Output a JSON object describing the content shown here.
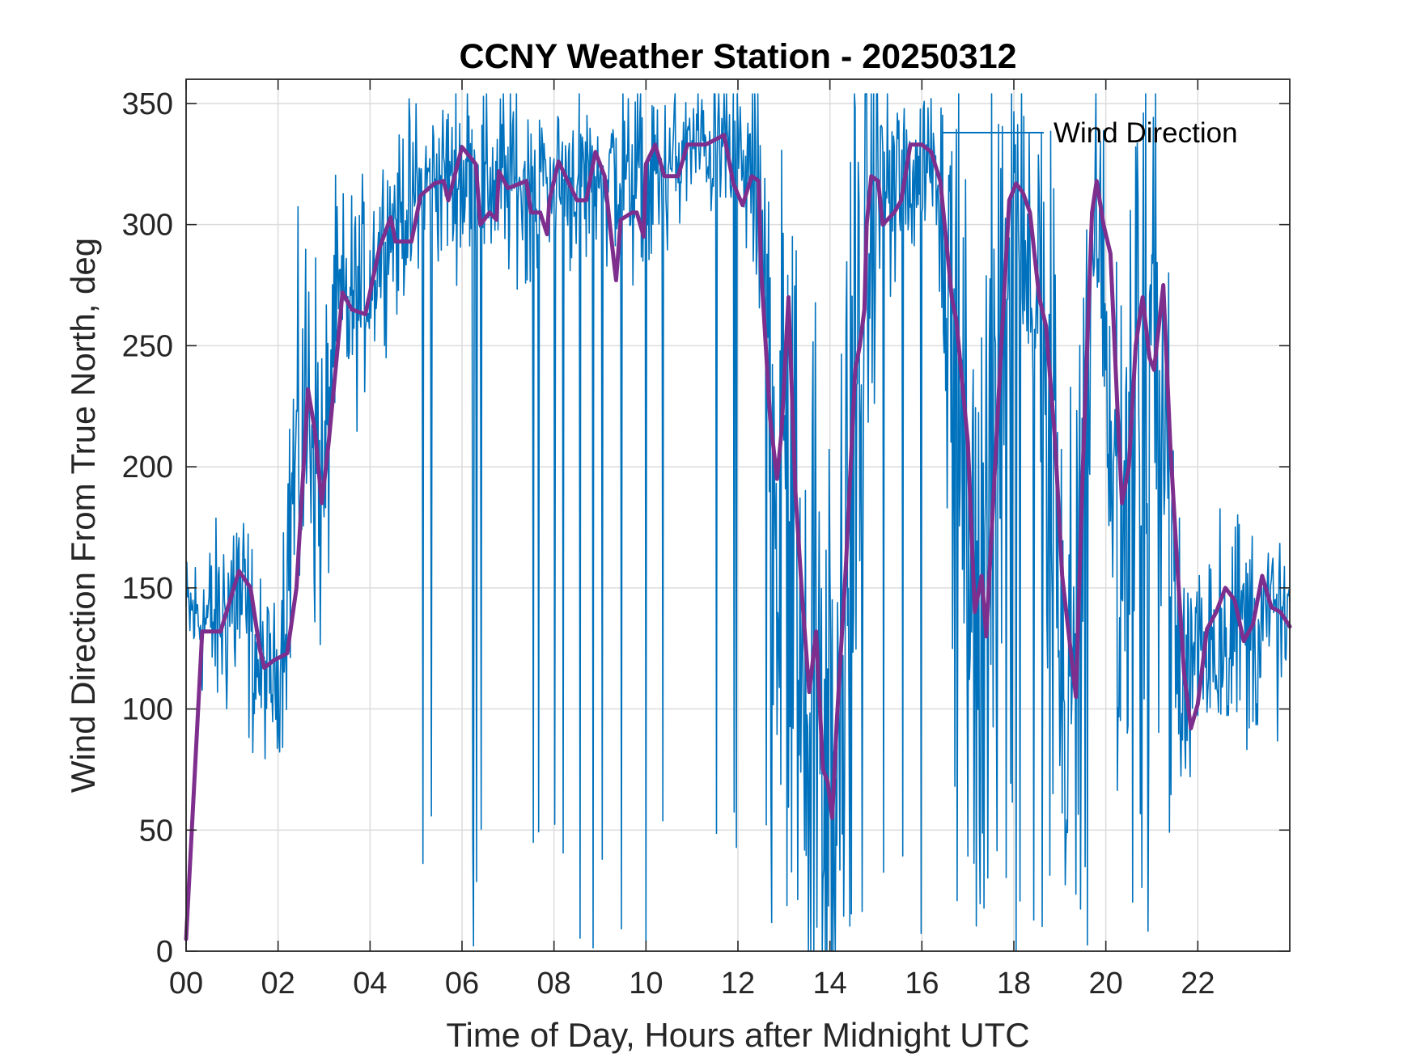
{
  "chart_data": {
    "type": "line",
    "title": "CCNY Weather Station - 20250312",
    "xlabel": "Time of Day, Hours after Midnight UTC",
    "ylabel": "Wind Direction From True North, deg",
    "xlim": [
      0,
      24
    ],
    "ylim": [
      0,
      360
    ],
    "grid": true,
    "legend_position": "top-right",
    "x_ticks": [
      0,
      2,
      4,
      6,
      8,
      10,
      12,
      14,
      16,
      18,
      20,
      22
    ],
    "x_tick_labels": [
      "00",
      "02",
      "04",
      "06",
      "08",
      "10",
      "12",
      "14",
      "16",
      "18",
      "20",
      "22"
    ],
    "y_ticks": [
      0,
      50,
      100,
      150,
      200,
      250,
      300,
      350
    ],
    "y_tick_labels": [
      "0",
      "50",
      "100",
      "150",
      "200",
      "250",
      "300",
      "350"
    ],
    "series": [
      {
        "name": "Wind Direction",
        "role": "raw",
        "color": "#0072BD",
        "anchors": [
          [
            0.0,
            140,
            12
          ],
          [
            0.7,
            135,
            20
          ],
          [
            1.1,
            150,
            28
          ],
          [
            1.6,
            115,
            18
          ],
          [
            2.0,
            112,
            14
          ],
          [
            2.3,
            185,
            40
          ],
          [
            2.7,
            230,
            40
          ],
          [
            3.0,
            180,
            40
          ],
          [
            3.2,
            260,
            25
          ],
          [
            3.8,
            270,
            22
          ],
          [
            4.3,
            295,
            18
          ],
          [
            5.0,
            312,
            18
          ],
          [
            5.8,
            322,
            18
          ],
          [
            7.0,
            318,
            20
          ],
          [
            8.0,
            318,
            18
          ],
          [
            9.0,
            322,
            18
          ],
          [
            10.0,
            315,
            20
          ],
          [
            11.0,
            332,
            12
          ],
          [
            11.8,
            332,
            15
          ],
          [
            12.4,
            315,
            25
          ],
          [
            12.9,
            200,
            80
          ],
          [
            13.4,
            150,
            90
          ],
          [
            14.0,
            80,
            80
          ],
          [
            14.5,
            220,
            70
          ],
          [
            15.0,
            310,
            30
          ],
          [
            15.6,
            318,
            18
          ],
          [
            16.3,
            330,
            15
          ],
          [
            16.7,
            250,
            70
          ],
          [
            17.2,
            150,
            70
          ],
          [
            17.6,
            240,
            60
          ],
          [
            18.0,
            310,
            30
          ],
          [
            18.6,
            270,
            50
          ],
          [
            19.2,
            110,
            70
          ],
          [
            19.8,
            310,
            30
          ],
          [
            20.3,
            190,
            70
          ],
          [
            20.8,
            260,
            60
          ],
          [
            21.2,
            250,
            60
          ],
          [
            21.6,
            100,
            40
          ],
          [
            22.0,
            130,
            25
          ],
          [
            23.0,
            135,
            25
          ],
          [
            24.0,
            135,
            20
          ]
        ],
        "noise_seed": 12345
      },
      {
        "name": "",
        "role": "smoothed",
        "color": "#7E2F8E",
        "points": [
          [
            0.0,
            5
          ],
          [
            0.35,
            132
          ],
          [
            0.75,
            132
          ],
          [
            1.15,
            157
          ],
          [
            1.4,
            150
          ],
          [
            1.6,
            125
          ],
          [
            1.7,
            117
          ],
          [
            1.9,
            120
          ],
          [
            2.2,
            123
          ],
          [
            2.4,
            150
          ],
          [
            2.6,
            215
          ],
          [
            2.65,
            232
          ],
          [
            2.8,
            215
          ],
          [
            2.95,
            185
          ],
          [
            3.1,
            210
          ],
          [
            3.3,
            250
          ],
          [
            3.4,
            272
          ],
          [
            3.6,
            265
          ],
          [
            3.9,
            263
          ],
          [
            4.2,
            290
          ],
          [
            4.45,
            303
          ],
          [
            4.55,
            293
          ],
          [
            4.9,
            293
          ],
          [
            5.1,
            312
          ],
          [
            5.4,
            317
          ],
          [
            5.6,
            318
          ],
          [
            5.7,
            310
          ],
          [
            6.0,
            332
          ],
          [
            6.3,
            325
          ],
          [
            6.4,
            300
          ],
          [
            6.6,
            305
          ],
          [
            6.75,
            302
          ],
          [
            6.8,
            322
          ],
          [
            7.0,
            315
          ],
          [
            7.4,
            318
          ],
          [
            7.5,
            305
          ],
          [
            7.7,
            305
          ],
          [
            7.85,
            296
          ],
          [
            7.9,
            310
          ],
          [
            8.1,
            326
          ],
          [
            8.5,
            310
          ],
          [
            8.7,
            310
          ],
          [
            8.9,
            330
          ],
          [
            9.1,
            320
          ],
          [
            9.3,
            285
          ],
          [
            9.35,
            277
          ],
          [
            9.45,
            302
          ],
          [
            9.7,
            305
          ],
          [
            9.8,
            305
          ],
          [
            9.95,
            295
          ],
          [
            10.0,
            325
          ],
          [
            10.2,
            333
          ],
          [
            10.4,
            320
          ],
          [
            10.7,
            320
          ],
          [
            10.9,
            333
          ],
          [
            11.3,
            333
          ],
          [
            11.7,
            337
          ],
          [
            11.9,
            317
          ],
          [
            12.1,
            308
          ],
          [
            12.3,
            320
          ],
          [
            12.45,
            318
          ],
          [
            12.5,
            283
          ],
          [
            12.7,
            220
          ],
          [
            12.85,
            195
          ],
          [
            12.95,
            215
          ],
          [
            13.1,
            270
          ],
          [
            13.25,
            190
          ],
          [
            13.4,
            145
          ],
          [
            13.55,
            107
          ],
          [
            13.7,
            132
          ],
          [
            13.85,
            75
          ],
          [
            13.95,
            70
          ],
          [
            14.05,
            55
          ],
          [
            14.15,
            95
          ],
          [
            14.35,
            160
          ],
          [
            14.55,
            240
          ],
          [
            14.65,
            250
          ],
          [
            14.75,
            265
          ],
          [
            14.8,
            300
          ],
          [
            14.9,
            320
          ],
          [
            15.05,
            318
          ],
          [
            15.15,
            300
          ],
          [
            15.4,
            305
          ],
          [
            15.55,
            310
          ],
          [
            15.75,
            333
          ],
          [
            16.0,
            333
          ],
          [
            16.2,
            330
          ],
          [
            16.4,
            318
          ],
          [
            16.65,
            270
          ],
          [
            16.75,
            260
          ],
          [
            17.0,
            210
          ],
          [
            17.15,
            140
          ],
          [
            17.3,
            155
          ],
          [
            17.4,
            130
          ],
          [
            17.7,
            240
          ],
          [
            17.9,
            310
          ],
          [
            18.05,
            317
          ],
          [
            18.2,
            313
          ],
          [
            18.35,
            305
          ],
          [
            18.55,
            270
          ],
          [
            18.7,
            258
          ],
          [
            18.9,
            210
          ],
          [
            19.05,
            155
          ],
          [
            19.2,
            130
          ],
          [
            19.35,
            105
          ],
          [
            19.5,
            200
          ],
          [
            19.7,
            305
          ],
          [
            19.8,
            318
          ],
          [
            19.95,
            300
          ],
          [
            20.1,
            288
          ],
          [
            20.25,
            225
          ],
          [
            20.35,
            185
          ],
          [
            20.5,
            200
          ],
          [
            20.65,
            250
          ],
          [
            20.8,
            270
          ],
          [
            20.95,
            245
          ],
          [
            21.05,
            240
          ],
          [
            21.25,
            275
          ],
          [
            21.4,
            210
          ],
          [
            21.55,
            160
          ],
          [
            21.7,
            115
          ],
          [
            21.85,
            92
          ],
          [
            22.0,
            102
          ],
          [
            22.2,
            133
          ],
          [
            22.4,
            140
          ],
          [
            22.6,
            150
          ],
          [
            22.8,
            145
          ],
          [
            23.0,
            128
          ],
          [
            23.2,
            135
          ],
          [
            23.4,
            155
          ],
          [
            23.6,
            142
          ],
          [
            23.8,
            140
          ],
          [
            24.0,
            134
          ]
        ]
      }
    ]
  }
}
